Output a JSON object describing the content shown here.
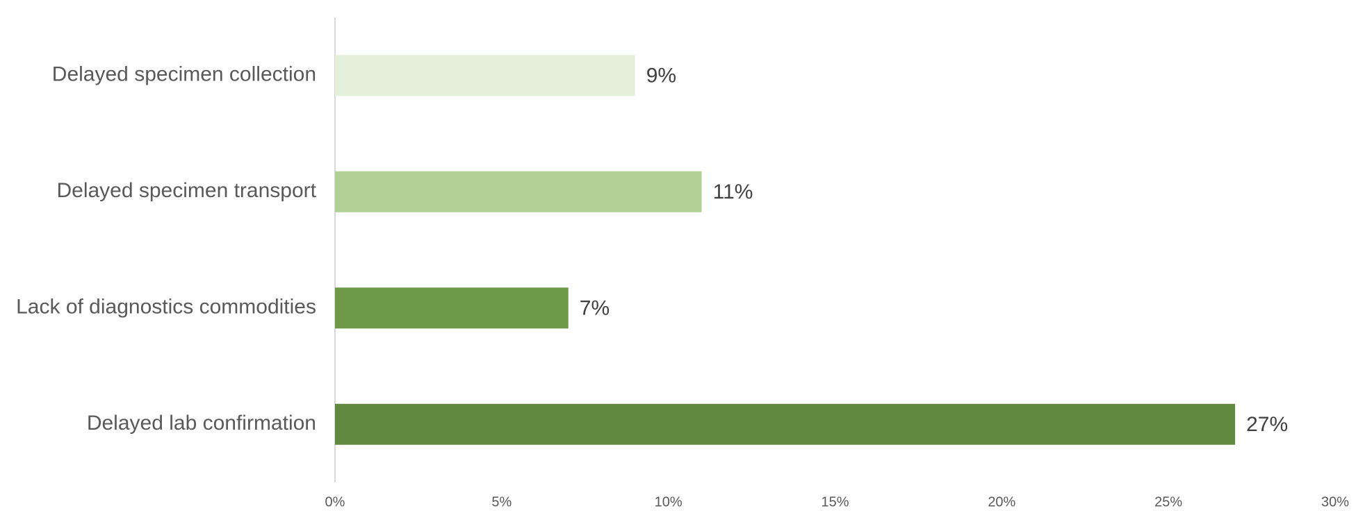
{
  "chart_data": {
    "type": "hbar",
    "categories": [
      "Delayed specimen collection",
      "Delayed specimen transport",
      "Lack of diagnostics commodities",
      "Delayed lab confirmation"
    ],
    "values": [
      9,
      11,
      7,
      27
    ],
    "value_labels": [
      "9%",
      "11%",
      "7%",
      "27%"
    ],
    "colors": [
      "#e5f0dc",
      "#b1d197",
      "#6f9a4a",
      "#628941"
    ],
    "xlim": [
      0,
      30
    ],
    "xticks": [
      {
        "value": 0,
        "label": "0%"
      },
      {
        "value": 5,
        "label": "5%"
      },
      {
        "value": 10,
        "label": "10%"
      },
      {
        "value": 15,
        "label": "15%"
      },
      {
        "value": 20,
        "label": "20%"
      },
      {
        "value": 25,
        "label": "25%"
      },
      {
        "value": 30,
        "label": "30%"
      }
    ],
    "grid": false
  }
}
